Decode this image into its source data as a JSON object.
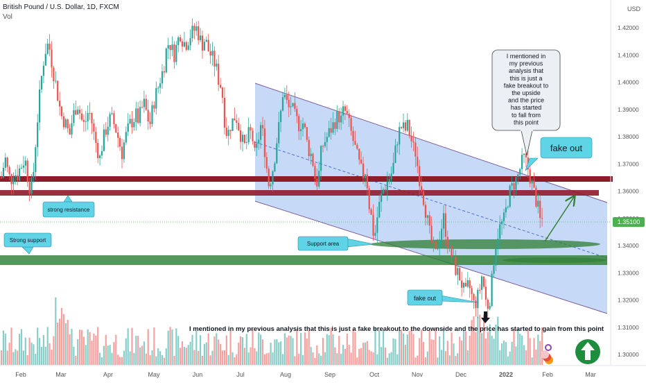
{
  "header": {
    "title": "British Pound / U.S. Dollar, 1D, FXCM",
    "volume_label": "Vol"
  },
  "axis": {
    "currency": "USD",
    "last_price": "1.35100",
    "colors": {
      "up": "#26a69a",
      "down": "#ef5350",
      "channel": "#bcd4f6",
      "resistance": "#8e1c2a",
      "support": "#2e7d32",
      "callout": "#5ed4e6",
      "price_tag": "#4caf50"
    }
  },
  "chart_data": {
    "type": "candlestick",
    "y_ticks": [
      "1.42000",
      "1.41000",
      "1.40000",
      "1.39000",
      "1.38000",
      "1.37000",
      "1.36000",
      "1.35000",
      "1.34000",
      "1.33000",
      "1.32000",
      "1.31000",
      "1.30000"
    ],
    "ylim": [
      1.296,
      1.428
    ],
    "x_ticks": [
      "Feb",
      "Mar",
      "Apr",
      "May",
      "Jun",
      "Jul",
      "Aug",
      "Sep",
      "Oct",
      "Nov",
      "Dec",
      "2022",
      "Feb",
      "Mar"
    ],
    "price_path": [
      [
        0,
        1.362
      ],
      [
        4,
        1.368
      ],
      [
        8,
        1.372
      ],
      [
        12,
        1.366
      ],
      [
        16,
        1.364
      ],
      [
        20,
        1.368
      ],
      [
        24,
        1.365
      ],
      [
        28,
        1.368
      ],
      [
        32,
        1.37
      ],
      [
        36,
        1.372
      ],
      [
        40,
        1.365
      ],
      [
        44,
        1.36
      ],
      [
        48,
        1.366
      ],
      [
        52,
        1.38
      ],
      [
        56,
        1.392
      ],
      [
        60,
        1.402
      ],
      [
        64,
        1.41
      ],
      [
        68,
        1.414
      ],
      [
        72,
        1.412
      ],
      [
        76,
        1.405
      ],
      [
        80,
        1.4
      ],
      [
        84,
        1.394
      ],
      [
        88,
        1.388
      ],
      [
        92,
        1.386
      ],
      [
        96,
        1.384
      ],
      [
        100,
        1.38
      ],
      [
        104,
        1.386
      ],
      [
        108,
        1.39
      ],
      [
        112,
        1.392
      ],
      [
        116,
        1.388
      ],
      [
        120,
        1.384
      ],
      [
        124,
        1.386
      ],
      [
        128,
        1.39
      ],
      [
        132,
        1.386
      ],
      [
        136,
        1.38
      ],
      [
        140,
        1.376
      ],
      [
        144,
        1.372
      ],
      [
        148,
        1.378
      ],
      [
        152,
        1.382
      ],
      [
        156,
        1.385
      ],
      [
        160,
        1.387
      ],
      [
        164,
        1.385
      ],
      [
        168,
        1.382
      ],
      [
        172,
        1.378
      ],
      [
        176,
        1.374
      ],
      [
        180,
        1.379
      ],
      [
        184,
        1.382
      ],
      [
        188,
        1.385
      ],
      [
        192,
        1.386
      ],
      [
        196,
        1.388
      ],
      [
        200,
        1.386
      ],
      [
        204,
        1.39
      ],
      [
        208,
        1.392
      ],
      [
        212,
        1.388
      ],
      [
        216,
        1.384
      ],
      [
        220,
        1.39
      ],
      [
        224,
        1.395
      ],
      [
        228,
        1.398
      ],
      [
        232,
        1.402
      ],
      [
        236,
        1.405
      ],
      [
        240,
        1.412
      ],
      [
        244,
        1.415
      ],
      [
        248,
        1.412
      ],
      [
        252,
        1.41
      ],
      [
        256,
        1.415
      ],
      [
        260,
        1.418
      ],
      [
        264,
        1.415
      ],
      [
        268,
        1.414
      ],
      [
        272,
        1.416
      ],
      [
        276,
        1.418
      ],
      [
        280,
        1.419
      ],
      [
        284,
        1.42
      ],
      [
        288,
        1.416
      ],
      [
        292,
        1.414
      ],
      [
        296,
        1.416
      ],
      [
        300,
        1.412
      ],
      [
        304,
        1.41
      ],
      [
        308,
        1.408
      ],
      [
        312,
        1.405
      ],
      [
        316,
        1.4
      ],
      [
        320,
        1.398
      ],
      [
        324,
        1.386
      ],
      [
        328,
        1.38
      ],
      [
        332,
        1.384
      ],
      [
        336,
        1.386
      ],
      [
        340,
        1.388
      ],
      [
        344,
        1.384
      ],
      [
        348,
        1.38
      ],
      [
        352,
        1.376
      ],
      [
        356,
        1.378
      ],
      [
        360,
        1.382
      ],
      [
        364,
        1.38
      ],
      [
        368,
        1.372
      ],
      [
        372,
        1.378
      ],
      [
        376,
        1.384
      ],
      [
        380,
        1.38
      ],
      [
        384,
        1.37
      ],
      [
        388,
        1.362
      ],
      [
        392,
        1.366
      ],
      [
        396,
        1.372
      ],
      [
        400,
        1.38
      ],
      [
        404,
        1.386
      ],
      [
        408,
        1.396
      ],
      [
        412,
        1.394
      ],
      [
        416,
        1.39
      ],
      [
        420,
        1.392
      ],
      [
        424,
        1.388
      ],
      [
        428,
        1.386
      ],
      [
        432,
        1.384
      ],
      [
        436,
        1.386
      ],
      [
        440,
        1.382
      ],
      [
        444,
        1.376
      ],
      [
        448,
        1.374
      ],
      [
        452,
        1.37
      ],
      [
        456,
        1.362
      ],
      [
        460,
        1.366
      ],
      [
        464,
        1.376
      ],
      [
        468,
        1.378
      ],
      [
        472,
        1.38
      ],
      [
        476,
        1.382
      ],
      [
        480,
        1.384
      ],
      [
        484,
        1.386
      ],
      [
        488,
        1.388
      ],
      [
        492,
        1.386
      ],
      [
        496,
        1.39
      ],
      [
        500,
        1.388
      ],
      [
        504,
        1.384
      ],
      [
        508,
        1.38
      ],
      [
        512,
        1.376
      ],
      [
        516,
        1.372
      ],
      [
        520,
        1.368
      ],
      [
        524,
        1.366
      ],
      [
        528,
        1.368
      ],
      [
        532,
        1.356
      ],
      [
        536,
        1.35
      ],
      [
        540,
        1.342
      ],
      [
        544,
        1.35
      ],
      [
        548,
        1.356
      ],
      [
        552,
        1.36
      ],
      [
        556,
        1.362
      ],
      [
        560,
        1.364
      ],
      [
        564,
        1.366
      ],
      [
        568,
        1.37
      ],
      [
        572,
        1.378
      ],
      [
        576,
        1.382
      ],
      [
        580,
        1.384
      ],
      [
        584,
        1.382
      ],
      [
        588,
        1.384
      ],
      [
        592,
        1.38
      ],
      [
        596,
        1.376
      ],
      [
        600,
        1.374
      ],
      [
        604,
        1.366
      ],
      [
        608,
        1.362
      ],
      [
        612,
        1.356
      ],
      [
        616,
        1.35
      ],
      [
        620,
        1.344
      ],
      [
        624,
        1.34
      ],
      [
        628,
        1.336
      ],
      [
        632,
        1.342
      ],
      [
        636,
        1.346
      ],
      [
        640,
        1.35
      ],
      [
        644,
        1.344
      ],
      [
        648,
        1.338
      ],
      [
        652,
        1.336
      ],
      [
        656,
        1.332
      ],
      [
        660,
        1.33
      ],
      [
        664,
        1.328
      ],
      [
        668,
        1.324
      ],
      [
        672,
        1.322
      ],
      [
        676,
        1.326
      ],
      [
        680,
        1.322
      ],
      [
        684,
        1.318
      ],
      [
        688,
        1.32
      ],
      [
        692,
        1.324
      ],
      [
        696,
        1.33
      ],
      [
        700,
        1.32
      ],
      [
        704,
        1.318
      ],
      [
        708,
        1.322
      ],
      [
        712,
        1.334
      ],
      [
        716,
        1.342
      ],
      [
        720,
        1.346
      ],
      [
        724,
        1.348
      ],
      [
        728,
        1.35
      ],
      [
        732,
        1.356
      ],
      [
        736,
        1.36
      ],
      [
        740,
        1.362
      ],
      [
        744,
        1.364
      ],
      [
        748,
        1.366
      ],
      [
        752,
        1.37
      ],
      [
        756,
        1.372
      ],
      [
        760,
        1.37
      ],
      [
        764,
        1.366
      ],
      [
        768,
        1.362
      ],
      [
        772,
        1.358
      ],
      [
        776,
        1.354
      ],
      [
        780,
        1.348
      ],
      [
        784,
        1.351
      ]
    ]
  },
  "annotations": {
    "strong_resistance": "strong resistance",
    "strong_support": "Strong support",
    "support_area": "Support area",
    "fake_out_top": "fake out",
    "fake_out_bottom": "fake out",
    "note_top": [
      "I mentioned in",
      "my previous",
      "analysis that",
      "this is just a",
      "fake breakout to",
      "the upside",
      "and the price",
      "has started",
      "to fall from",
      "this point"
    ],
    "note_bottom": "I mentioned in my previous analysis that this is just a fake breakout to the downside and the price has started to gain from this point"
  }
}
